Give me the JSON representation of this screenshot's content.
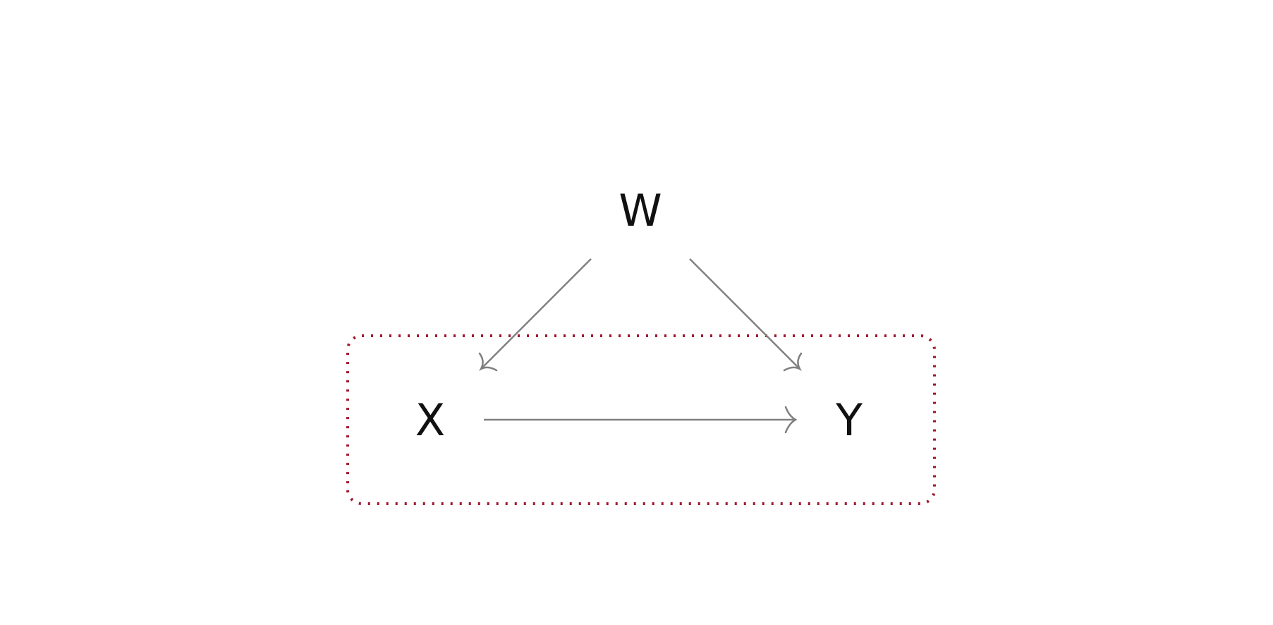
{
  "diagram": {
    "nodes": [
      {
        "id": "W",
        "label": "W"
      },
      {
        "id": "X",
        "label": "X"
      },
      {
        "id": "Y",
        "label": "Y"
      }
    ],
    "edges": [
      {
        "from": "W",
        "to": "X"
      },
      {
        "from": "W",
        "to": "Y"
      },
      {
        "from": "X",
        "to": "Y"
      }
    ],
    "group": {
      "members": [
        "X",
        "Y"
      ],
      "border_style": "dotted",
      "border_color": "#a0182d"
    },
    "edge_color": "#808080",
    "label_color": "#111111"
  }
}
